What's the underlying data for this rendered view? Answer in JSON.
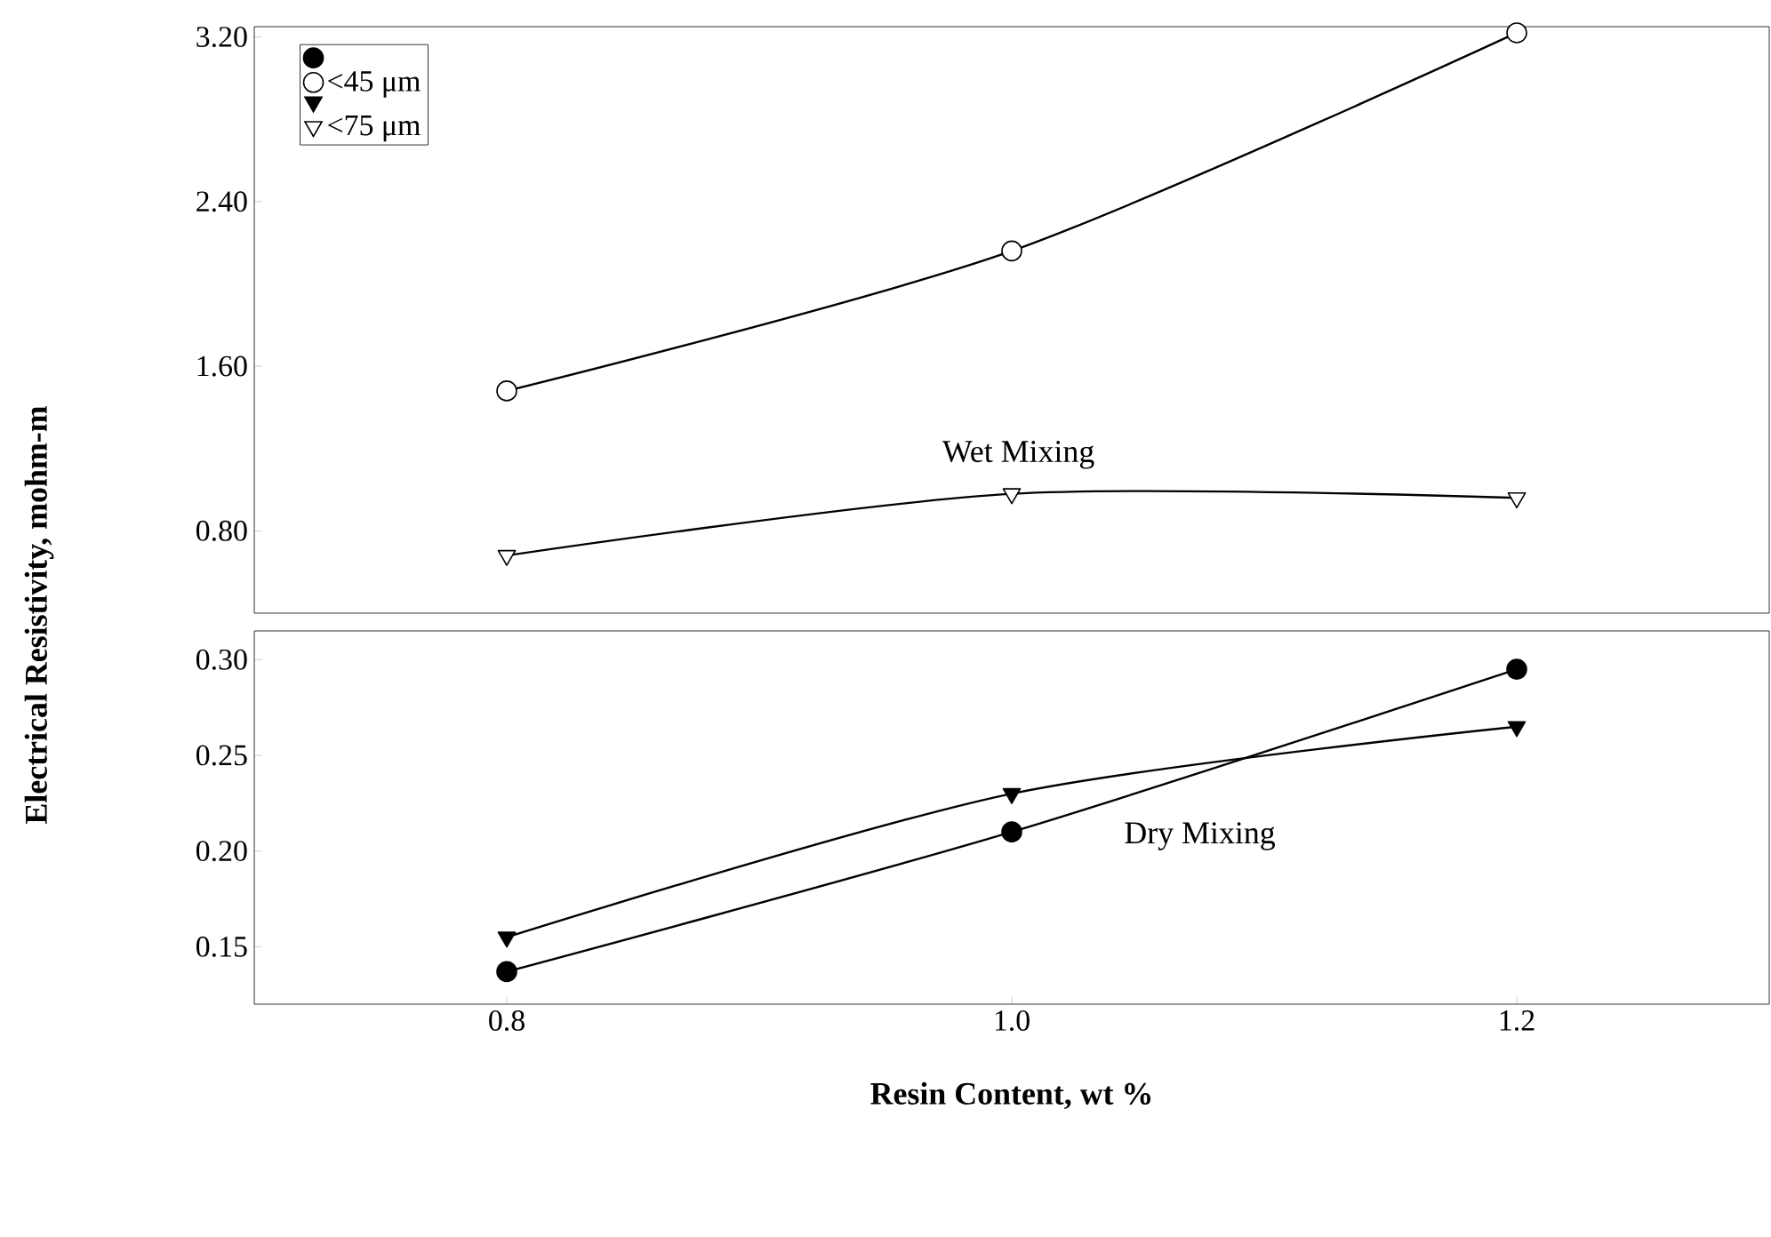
{
  "chart_data": [
    {
      "type": "line",
      "ylabel": "Electrical Resistivity, mohm-m",
      "x": [
        0.8,
        1.0,
        1.2
      ],
      "xlim": [
        0.7,
        1.3
      ],
      "ylim": [
        0.4,
        3.25
      ],
      "yticks": [
        {
          "value": 0.8,
          "label": "0.80"
        },
        {
          "value": 1.6,
          "label": "1.60"
        },
        {
          "value": 2.4,
          "label": "2.40"
        },
        {
          "value": 3.2,
          "label": "3.20"
        }
      ],
      "tick_labels": "y",
      "legend": "top left",
      "annotations": [
        "Wet Mixing"
      ],
      "series": [
        {
          "name": "<45 μm",
          "color": "#ffffff",
          "marker": "circle",
          "values": [
            1.48,
            2.16,
            3.22
          ]
        },
        {
          "name": "<75 μm",
          "color": "#ffffff",
          "marker": "triangle",
          "values": [
            0.68,
            0.98,
            0.96
          ]
        }
      ]
    },
    {
      "type": "line",
      "xlabel": "Resin Content, wt %",
      "x": [
        0.8,
        1.0,
        1.2
      ],
      "xlim": [
        0.7,
        1.3
      ],
      "ylim": [
        0.12,
        0.315
      ],
      "xticks": [
        0.8,
        {
          "value": 1.0,
          "label": "1.0"
        },
        1.2
      ],
      "yticks": [
        0.15,
        {
          "value": 0.2,
          "label": "0.20"
        },
        0.25,
        {
          "value": 0.3,
          "label": "0.30"
        }
      ],
      "annotations": [
        "Dry Mixing"
      ],
      "series": [
        {
          "color": "#000000",
          "marker": "circle",
          "values": [
            0.137,
            0.21,
            0.295
          ]
        },
        {
          "color": "#000000",
          "marker": "triangle",
          "values": [
            0.155,
            0.23,
            0.265
          ]
        }
      ]
    }
  ]
}
